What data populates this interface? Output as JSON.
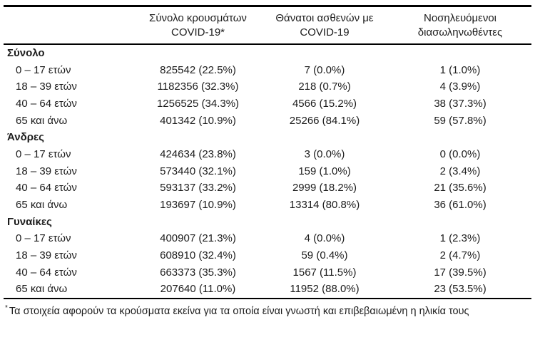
{
  "table": {
    "headers": [
      {
        "line1": "Σύνολο κρουσμάτων",
        "line2": "COVID-19*"
      },
      {
        "line1": "Θάνατοι ασθενών με",
        "line2": "COVID-19"
      },
      {
        "line1": "Νοσηλευόμενοι",
        "line2": "διασωληνωθέντες"
      }
    ],
    "sections": [
      {
        "label": "Σύνολο",
        "rows": [
          {
            "age": "0 – 17 ετών",
            "cases": "825542 (22.5%)",
            "deaths": "7 (0.0%)",
            "intubated": "1 (1.0%)"
          },
          {
            "age": "18 – 39 ετών",
            "cases": "1182356 (32.3%)",
            "deaths": "218 (0.7%)",
            "intubated": "4 (3.9%)"
          },
          {
            "age": "40 – 64 ετών",
            "cases": "1256525 (34.3%)",
            "deaths": "4566 (15.2%)",
            "intubated": "38 (37.3%)"
          },
          {
            "age": "65 και άνω",
            "cases": "401342 (10.9%)",
            "deaths": "25266 (84.1%)",
            "intubated": "59 (57.8%)"
          }
        ]
      },
      {
        "label": "Άνδρες",
        "rows": [
          {
            "age": "0 – 17 ετών",
            "cases": "424634 (23.8%)",
            "deaths": "3 (0.0%)",
            "intubated": "0 (0.0%)"
          },
          {
            "age": "18 – 39 ετών",
            "cases": "573440 (32.1%)",
            "deaths": "159 (1.0%)",
            "intubated": "2 (3.4%)"
          },
          {
            "age": "40 – 64 ετών",
            "cases": "593137 (33.2%)",
            "deaths": "2999 (18.2%)",
            "intubated": "21 (35.6%)"
          },
          {
            "age": "65 και άνω",
            "cases": "193697 (10.9%)",
            "deaths": "13314 (80.8%)",
            "intubated": "36 (61.0%)"
          }
        ]
      },
      {
        "label": "Γυναίκες",
        "rows": [
          {
            "age": "0 – 17 ετών",
            "cases": "400907 (21.3%)",
            "deaths": "4 (0.0%)",
            "intubated": "1 (2.3%)"
          },
          {
            "age": "18 – 39 ετών",
            "cases": "608910 (32.4%)",
            "deaths": "59 (0.4%)",
            "intubated": "2 (4.7%)"
          },
          {
            "age": "40 – 64 ετών",
            "cases": "663373 (35.3%)",
            "deaths": "1567 (11.5%)",
            "intubated": "17 (39.5%)"
          },
          {
            "age": "65 και άνω",
            "cases": "207640 (11.0%)",
            "deaths": "11952 (88.0%)",
            "intubated": "23 (53.5%)"
          }
        ]
      }
    ]
  },
  "footnote": {
    "marker": "*",
    "text": "Τα στοιχεία αφορούν τα κρούσματα εκείνα για τα οποία είναι γνωστή και επιβεβαιωμένη η ηλικία τους"
  },
  "colors": {
    "text": "#1c1c1c",
    "rule": "#000000",
    "background": "#ffffff"
  }
}
